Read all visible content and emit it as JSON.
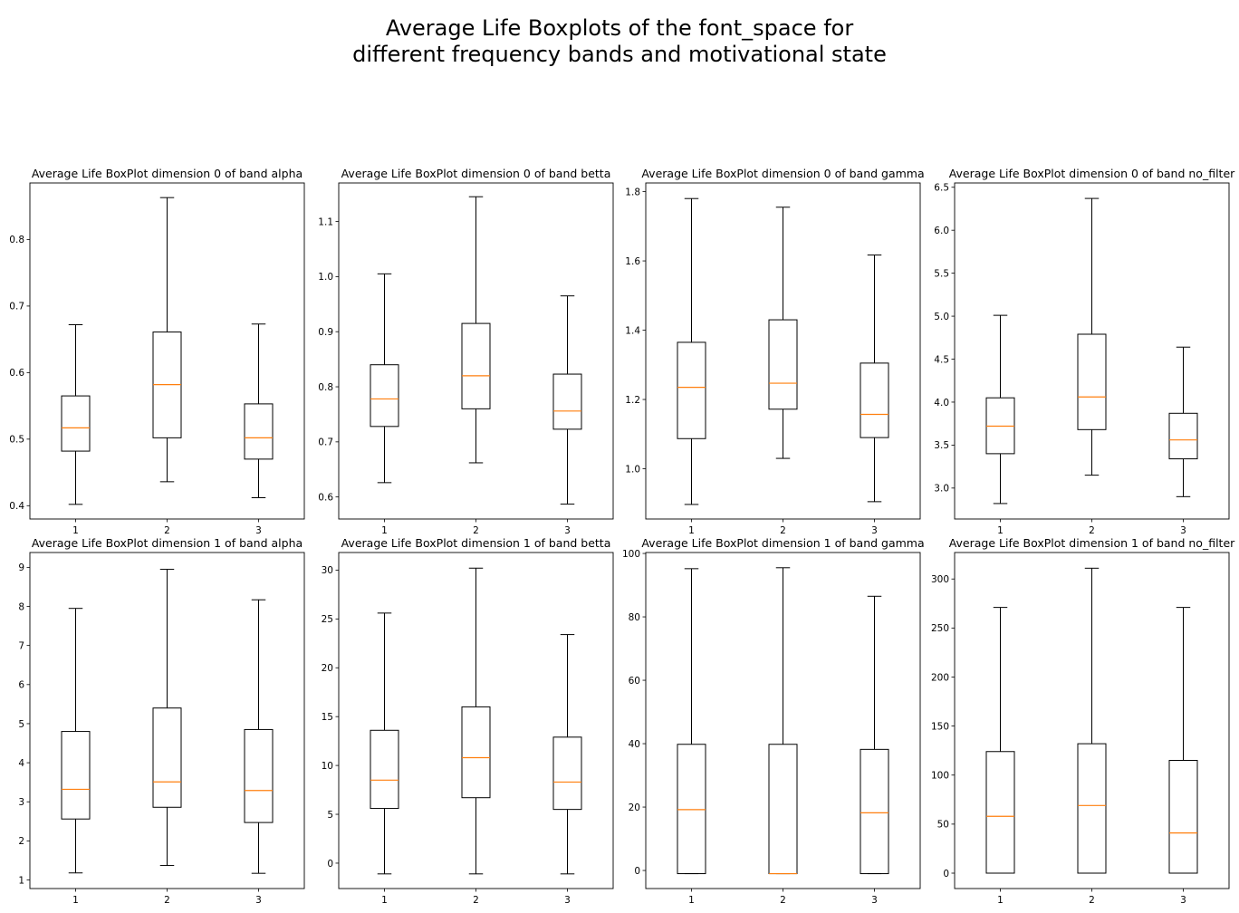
{
  "figure": {
    "title_lines": [
      "Average Life Boxplots of the font_space for",
      "different frequency bands and motivational state"
    ]
  },
  "chart_data": [
    {
      "type": "box",
      "title": "Average Life BoxPlot dimension 0 of band alpha",
      "categories": [
        "1",
        "2",
        "3"
      ],
      "ylim": [
        0.38,
        0.885
      ],
      "yticks": [
        0.4,
        0.5,
        0.6,
        0.7,
        0.8
      ],
      "ytick_labels": [
        "0.4",
        "0.5",
        "0.6",
        "0.7",
        "0.8"
      ],
      "boxes": [
        {
          "whislo": 0.402,
          "q1": 0.482,
          "med": 0.517,
          "q3": 0.565,
          "whishi": 0.672
        },
        {
          "whislo": 0.436,
          "q1": 0.502,
          "med": 0.582,
          "q3": 0.661,
          "whishi": 0.863
        },
        {
          "whislo": 0.412,
          "q1": 0.47,
          "med": 0.502,
          "q3": 0.553,
          "whishi": 0.673
        }
      ]
    },
    {
      "type": "box",
      "title": "Average Life BoxPlot dimension 0 of band betta",
      "categories": [
        "1",
        "2",
        "3"
      ],
      "ylim": [
        0.56,
        1.17
      ],
      "yticks": [
        0.6,
        0.7,
        0.8,
        0.9,
        1.0,
        1.1
      ],
      "ytick_labels": [
        "0.6",
        "0.7",
        "0.8",
        "0.9",
        "1.0",
        "1.1"
      ],
      "boxes": [
        {
          "whislo": 0.626,
          "q1": 0.728,
          "med": 0.778,
          "q3": 0.84,
          "whishi": 1.005
        },
        {
          "whislo": 0.662,
          "q1": 0.76,
          "med": 0.82,
          "q3": 0.915,
          "whishi": 1.145
        },
        {
          "whislo": 0.587,
          "q1": 0.723,
          "med": 0.756,
          "q3": 0.823,
          "whishi": 0.965
        }
      ]
    },
    {
      "type": "box",
      "title": "Average Life BoxPlot dimension 0 of band gamma",
      "categories": [
        "1",
        "2",
        "3"
      ],
      "ylim": [
        0.855,
        1.825
      ],
      "yticks": [
        1.0,
        1.2,
        1.4,
        1.6,
        1.8
      ],
      "ytick_labels": [
        "1.0",
        "1.2",
        "1.4",
        "1.6",
        "1.8"
      ],
      "boxes": [
        {
          "whislo": 0.897,
          "q1": 1.087,
          "med": 1.235,
          "q3": 1.365,
          "whishi": 1.78
        },
        {
          "whislo": 1.03,
          "q1": 1.172,
          "med": 1.247,
          "q3": 1.43,
          "whishi": 1.755
        },
        {
          "whislo": 0.905,
          "q1": 1.09,
          "med": 1.157,
          "q3": 1.305,
          "whishi": 1.617
        }
      ]
    },
    {
      "type": "box",
      "title": "Average Life BoxPlot dimension 0 of band no_filter",
      "categories": [
        "1",
        "2",
        "3"
      ],
      "ylim": [
        2.64,
        6.55
      ],
      "yticks": [
        3.0,
        3.5,
        4.0,
        4.5,
        5.0,
        5.5,
        6.0,
        6.5
      ],
      "ytick_labels": [
        "3.0",
        "3.5",
        "4.0",
        "4.5",
        "5.0",
        "5.5",
        "6.0",
        "6.5"
      ],
      "boxes": [
        {
          "whislo": 2.82,
          "q1": 3.4,
          "med": 3.72,
          "q3": 4.05,
          "whishi": 5.01
        },
        {
          "whislo": 3.15,
          "q1": 3.68,
          "med": 4.06,
          "q3": 4.79,
          "whishi": 6.37
        },
        {
          "whislo": 2.9,
          "q1": 3.34,
          "med": 3.56,
          "q3": 3.87,
          "whishi": 4.64
        }
      ]
    },
    {
      "type": "box",
      "title": "Average Life BoxPlot dimension 1 of band alpha",
      "categories": [
        "1",
        "2",
        "3"
      ],
      "ylim": [
        0.78,
        9.38
      ],
      "yticks": [
        1,
        2,
        3,
        4,
        5,
        6,
        7,
        8,
        9
      ],
      "ytick_labels": [
        "1",
        "2",
        "3",
        "4",
        "5",
        "6",
        "7",
        "8",
        "9"
      ],
      "boxes": [
        {
          "whislo": 1.18,
          "q1": 2.56,
          "med": 3.32,
          "q3": 4.8,
          "whishi": 7.95
        },
        {
          "whislo": 1.37,
          "q1": 2.86,
          "med": 3.51,
          "q3": 5.4,
          "whishi": 8.95
        },
        {
          "whislo": 1.17,
          "q1": 2.47,
          "med": 3.29,
          "q3": 4.85,
          "whishi": 8.17
        }
      ]
    },
    {
      "type": "box",
      "title": "Average Life BoxPlot dimension 1 of band betta",
      "categories": [
        "1",
        "2",
        "3"
      ],
      "ylim": [
        -2.6,
        31.8
      ],
      "yticks": [
        0,
        5,
        10,
        15,
        20,
        25,
        30
      ],
      "ytick_labels": [
        "0",
        "5",
        "10",
        "15",
        "20",
        "25",
        "30"
      ],
      "boxes": [
        {
          "whislo": -1.1,
          "q1": 5.6,
          "med": 8.5,
          "q3": 13.6,
          "whishi": 25.6
        },
        {
          "whislo": -1.1,
          "q1": 6.7,
          "med": 10.8,
          "q3": 16.0,
          "whishi": 30.2
        },
        {
          "whislo": -1.1,
          "q1": 5.5,
          "med": 8.3,
          "q3": 12.9,
          "whishi": 23.4
        }
      ]
    },
    {
      "type": "box",
      "title": "Average Life BoxPlot dimension 1 of band gamma",
      "categories": [
        "1",
        "2",
        "3"
      ],
      "ylim": [
        -5.7,
        100.3
      ],
      "yticks": [
        0,
        20,
        40,
        60,
        80,
        100
      ],
      "ytick_labels": [
        "0",
        "20",
        "40",
        "60",
        "80",
        "100"
      ],
      "boxes": [
        {
          "whislo": -1.0,
          "q1": -1.0,
          "med": 19.2,
          "q3": 39.8,
          "whishi": 95.2
        },
        {
          "whislo": -1.0,
          "q1": -1.0,
          "med": -1.0,
          "q3": 39.8,
          "whishi": 95.5
        },
        {
          "whislo": -1.0,
          "q1": -1.0,
          "med": 18.2,
          "q3": 38.2,
          "whishi": 86.5
        }
      ]
    },
    {
      "type": "box",
      "title": "Average Life BoxPlot dimension 1 of band no_filter",
      "categories": [
        "1",
        "2",
        "3"
      ],
      "ylim": [
        -15.7,
        327.0
      ],
      "yticks": [
        0,
        50,
        100,
        150,
        200,
        250,
        300
      ],
      "ytick_labels": [
        "0",
        "50",
        "100",
        "150",
        "200",
        "250",
        "300"
      ],
      "boxes": [
        {
          "whislo": 0,
          "q1": 0,
          "med": 58,
          "q3": 124,
          "whishi": 271
        },
        {
          "whislo": 0,
          "q1": 0,
          "med": 69,
          "q3": 132,
          "whishi": 311
        },
        {
          "whislo": 0,
          "q1": 0,
          "med": 41,
          "q3": 115,
          "whishi": 271
        }
      ]
    }
  ]
}
